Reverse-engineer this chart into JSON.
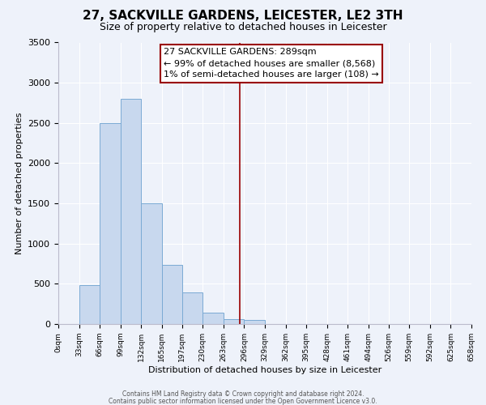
{
  "title": "27, SACKVILLE GARDENS, LEICESTER, LE2 3TH",
  "subtitle": "Size of property relative to detached houses in Leicester",
  "xlabel": "Distribution of detached houses by size in Leicester",
  "ylabel": "Number of detached properties",
  "bar_color": "#c8d8ee",
  "bar_edge_color": "#7baad4",
  "bin_edges": [
    0,
    33,
    66,
    99,
    132,
    165,
    197,
    230,
    263,
    296,
    329,
    362,
    395,
    428,
    461,
    494,
    526,
    559,
    592,
    625,
    658
  ],
  "bar_heights": [
    0,
    480,
    2500,
    2800,
    1500,
    740,
    390,
    145,
    65,
    50,
    0,
    0,
    0,
    0,
    0,
    0,
    0,
    0,
    0,
    0
  ],
  "tick_labels": [
    "0sqm",
    "33sqm",
    "66sqm",
    "99sqm",
    "132sqm",
    "165sqm",
    "197sqm",
    "230sqm",
    "263sqm",
    "296sqm",
    "329sqm",
    "362sqm",
    "395sqm",
    "428sqm",
    "461sqm",
    "494sqm",
    "526sqm",
    "559sqm",
    "592sqm",
    "625sqm",
    "658sqm"
  ],
  "vline_x": 289,
  "vline_color": "#990000",
  "annotation_line1": "27 SACKVILLE GARDENS: 289sqm",
  "annotation_line2": "← 99% of detached houses are smaller (8,568)",
  "annotation_line3": "1% of semi-detached houses are larger (108) →",
  "ylim": [
    0,
    3500
  ],
  "yticks": [
    0,
    500,
    1000,
    1500,
    2000,
    2500,
    3000,
    3500
  ],
  "footer1": "Contains HM Land Registry data © Crown copyright and database right 2024.",
  "footer2": "Contains public sector information licensed under the Open Government Licence v3.0.",
  "background_color": "#eef2fa",
  "grid_color": "#ffffff",
  "title_fontsize": 11,
  "subtitle_fontsize": 9,
  "xlabel_fontsize": 8,
  "ylabel_fontsize": 8,
  "tick_fontsize": 6.5,
  "annotation_fontsize": 8,
  "footer_fontsize": 5.5
}
